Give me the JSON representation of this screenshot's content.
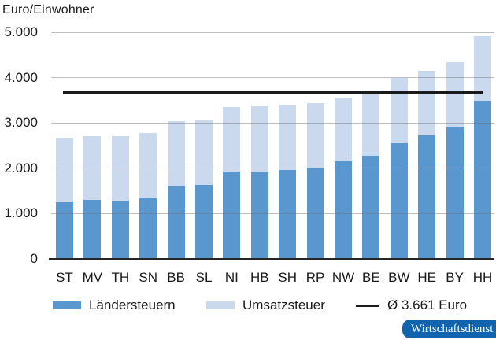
{
  "title": "Euro/Einwohner",
  "chart_data": {
    "type": "bar",
    "stacked": true,
    "title": "Euro/Einwohner",
    "xlabel": "",
    "ylabel": "Euro/Einwohner",
    "grid": true,
    "legend_position": "bottom",
    "categories": [
      "ST",
      "MV",
      "TH",
      "SN",
      "BB",
      "SL",
      "NI",
      "HB",
      "SH",
      "RP",
      "NW",
      "BE",
      "BW",
      "HE",
      "BY",
      "HH"
    ],
    "series": [
      {
        "name": "Ländersteuern",
        "color": "#5b97cf",
        "values": [
          1250,
          1300,
          1290,
          1345,
          1620,
          1635,
          1920,
          1930,
          1970,
          2010,
          2145,
          2275,
          2545,
          2720,
          2920,
          3490
        ]
      },
      {
        "name": "Umsatzsteuer",
        "color": "#cbd9ef",
        "values": [
          1420,
          1400,
          1410,
          1425,
          1410,
          1415,
          1430,
          1430,
          1430,
          1420,
          1415,
          1435,
          1440,
          1425,
          1420,
          1430
        ]
      }
    ],
    "reference_line": {
      "label": "Ø 3.661 Euro",
      "value": 3661,
      "color": "#1a1a1a"
    },
    "y_axis": {
      "ticks": [
        "5.000",
        "4.000",
        "3.000",
        "2.000",
        "1.000",
        "0"
      ],
      "tick_values": [
        5000,
        4000,
        3000,
        2000,
        1000,
        0
      ],
      "min": 0,
      "max": 5000
    }
  },
  "legend": {
    "items": [
      {
        "label": "Ländersteuern",
        "swatch": "bar",
        "color": "#5b97cf"
      },
      {
        "label": "Umsatzsteuer",
        "swatch": "bar",
        "color": "#cbd9ef"
      },
      {
        "label": "Ø 3.661 Euro",
        "swatch": "line",
        "color": "#1a1a1a"
      }
    ]
  },
  "badge": {
    "label": "Wirtschaftsdienst",
    "bg": "#1063ad",
    "text_color": "#ffffff"
  }
}
